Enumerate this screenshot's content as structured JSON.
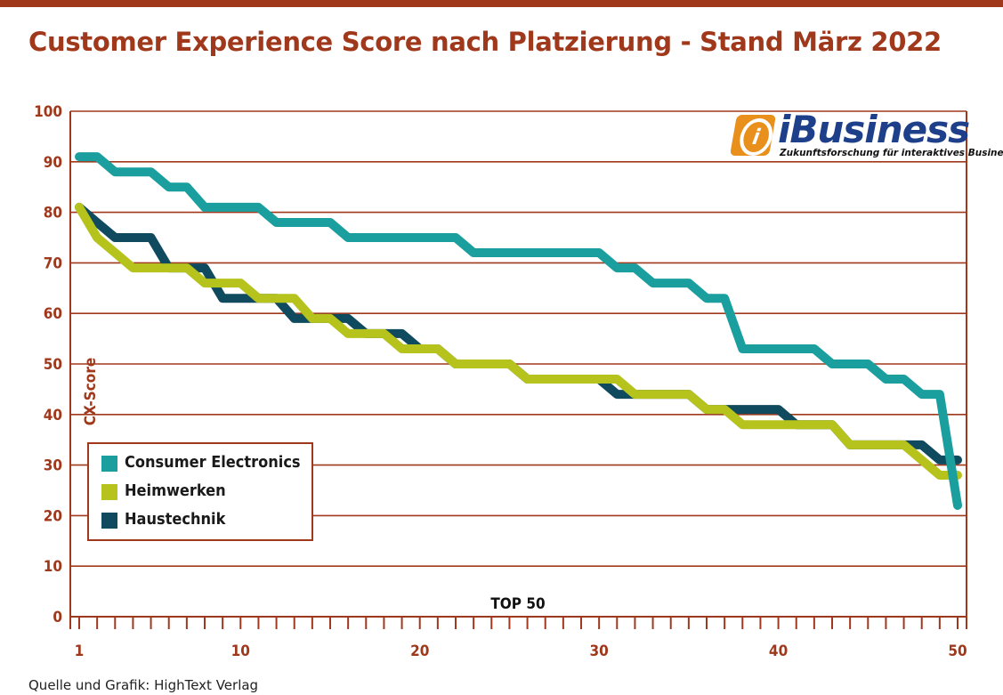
{
  "title": "Customer Experience Score nach Platzierung - Stand März 2022",
  "source": "Quelle und Grafik: HighText Verlag",
  "logo": {
    "wordmark": "iBusiness",
    "mark": "i",
    "tagline": "Zukunftsforschung für interaktives Business"
  },
  "colors": {
    "accent": "#a0381c",
    "grid": "#a0381c"
  },
  "chart_data": {
    "type": "line",
    "title": "Customer Experience Score nach Platzierung - Stand März 2022",
    "xlabel": "TOP 50",
    "ylabel": "CX-Score",
    "xlim": [
      1,
      50
    ],
    "ylim": [
      0,
      100
    ],
    "x_tick_labels": [
      "1",
      "10",
      "20",
      "30",
      "40",
      "50"
    ],
    "y_tick_labels": [
      "0",
      "10",
      "20",
      "30",
      "40",
      "50",
      "60",
      "70",
      "80",
      "90",
      "100"
    ],
    "grid": true,
    "legend_position": "bottom-left",
    "x": [
      1,
      2,
      3,
      4,
      5,
      6,
      7,
      8,
      9,
      10,
      11,
      12,
      13,
      14,
      15,
      16,
      17,
      18,
      19,
      20,
      21,
      22,
      23,
      24,
      25,
      26,
      27,
      28,
      29,
      30,
      31,
      32,
      33,
      34,
      35,
      36,
      37,
      38,
      39,
      40,
      41,
      42,
      43,
      44,
      45,
      46,
      47,
      48,
      49,
      50
    ],
    "series": [
      {
        "name": "Consumer Electronics",
        "color": "#1a9e9e",
        "values": [
          91,
          91,
          88,
          88,
          88,
          85,
          85,
          81,
          81,
          81,
          81,
          78,
          78,
          78,
          78,
          75,
          75,
          75,
          75,
          75,
          75,
          75,
          72,
          72,
          72,
          72,
          72,
          72,
          72,
          72,
          69,
          69,
          66,
          66,
          66,
          63,
          63,
          53,
          53,
          53,
          53,
          53,
          50,
          50,
          50,
          47,
          47,
          44,
          44,
          22
        ]
      },
      {
        "name": "Heimwerken",
        "color": "#b5c31c",
        "values": [
          81,
          75,
          72,
          69,
          69,
          69,
          69,
          66,
          66,
          66,
          63,
          63,
          63,
          59,
          59,
          56,
          56,
          56,
          53,
          53,
          53,
          50,
          50,
          50,
          50,
          47,
          47,
          47,
          47,
          47,
          47,
          44,
          44,
          44,
          44,
          41,
          41,
          38,
          38,
          38,
          38,
          38,
          38,
          34,
          34,
          34,
          34,
          31,
          28,
          28
        ]
      },
      {
        "name": "Haustechnik",
        "color": "#0f4a5e",
        "values": [
          81,
          78,
          75,
          75,
          75,
          69,
          69,
          69,
          63,
          63,
          63,
          63,
          59,
          59,
          59,
          59,
          56,
          56,
          56,
          53,
          53,
          50,
          50,
          50,
          50,
          47,
          47,
          47,
          47,
          47,
          44,
          44,
          44,
          44,
          44,
          41,
          41,
          41,
          41,
          41,
          38,
          38,
          38,
          34,
          34,
          34,
          34,
          34,
          31,
          31
        ]
      }
    ]
  }
}
